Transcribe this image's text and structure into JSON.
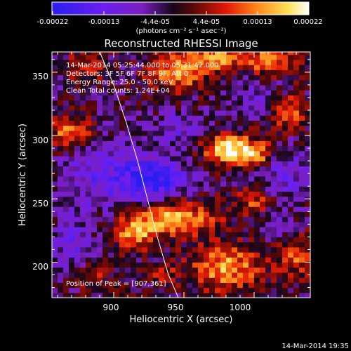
{
  "title": "Reconstructed RHESSI Image",
  "colorbar": {
    "tick_labels": [
      "-0.00022",
      "-0.00013",
      "-4.4e-05",
      "4.4e-05",
      "0.00013",
      "0.00022"
    ],
    "units": "(photons cm⁻² s⁻¹ asec⁻²)",
    "min": -0.00022,
    "max": 0.00022
  },
  "axes": {
    "xlabel": "Heliocentric X (arcsec)",
    "ylabel": "Heliocentric Y (arcsec)",
    "xlim": [
      856,
      1040
    ],
    "ylim": [
      172,
      366
    ],
    "xticks": [
      "900",
      "950",
      "1000"
    ],
    "yticks": [
      "200",
      "250",
      "300",
      "350"
    ]
  },
  "info": {
    "time_range": "14-Mar-2014 05:25:44.000 to 05:31:42.000",
    "detectors": "Detectors: 3F 5F 6F 7F 8F 9F, Att 0",
    "energy_range": "Energy Range: 25.0 - 50.0 keV",
    "method_counts": "Clean    Total counts: 1.24E+04"
  },
  "peak_text": "Position of Peak = [907,361]",
  "footer": "14-Mar-2014 19:35",
  "colors": {
    "background": "#000000",
    "text": "#ffffff",
    "limb": "#ffffff"
  },
  "chart_data": {
    "type": "heatmap",
    "title": "Reconstructed RHESSI Image",
    "xlabel": "Heliocentric X (arcsec)",
    "ylabel": "Heliocentric Y (arcsec)",
    "xlim": [
      856,
      1040
    ],
    "ylim": [
      172,
      366
    ],
    "value_range": [
      -0.00022,
      0.00022
    ],
    "colormap": "blue-purple-black-red-orange-yellow-white",
    "peak": [
      907,
      361
    ],
    "bright_regions": [
      {
        "x": 945,
        "y": 350,
        "sx": 14,
        "sy": 10,
        "value": 0.00016
      },
      {
        "x": 972,
        "y": 362,
        "sx": 15,
        "sy": 7,
        "value": 0.00015
      },
      {
        "x": 1012,
        "y": 360,
        "sx": 15,
        "sy": 8,
        "value": 0.00014
      },
      {
        "x": 870,
        "y": 302,
        "sx": 12,
        "sy": 10,
        "value": 0.00015
      },
      {
        "x": 880,
        "y": 355,
        "sx": 9,
        "sy": 8,
        "value": 0.0001
      },
      {
        "x": 982,
        "y": 290,
        "sx": 14,
        "sy": 8,
        "value": 0.00021
      },
      {
        "x": 1002,
        "y": 284,
        "sx": 10,
        "sy": 7,
        "value": 0.00013
      },
      {
        "x": 1025,
        "y": 318,
        "sx": 9,
        "sy": 10,
        "value": 0.00013
      },
      {
        "x": 940,
        "y": 235,
        "sx": 22,
        "sy": 10,
        "value": 0.00019
      },
      {
        "x": 915,
        "y": 222,
        "sx": 9,
        "sy": 8,
        "value": 0.00015
      },
      {
        "x": 1000,
        "y": 250,
        "sx": 10,
        "sy": 8,
        "value": 0.00011
      },
      {
        "x": 980,
        "y": 196,
        "sx": 18,
        "sy": 13,
        "value": 0.00016
      },
      {
        "x": 1030,
        "y": 205,
        "sx": 9,
        "sy": 12,
        "value": 0.00011
      },
      {
        "x": 935,
        "y": 190,
        "sx": 8,
        "sy": 7,
        "value": 7e-05
      },
      {
        "x": 885,
        "y": 190,
        "sx": 10,
        "sy": 7,
        "value": 7e-05
      }
    ],
    "dark_regions": [
      {
        "x": 928,
        "y": 265,
        "sx": 16,
        "sy": 13,
        "value": -0.00018
      },
      {
        "x": 890,
        "y": 270,
        "sx": 20,
        "sy": 22,
        "value": -0.0001
      },
      {
        "x": 1020,
        "y": 270,
        "sx": 13,
        "sy": 14,
        "value": -9e-05
      },
      {
        "x": 950,
        "y": 305,
        "sx": 14,
        "sy": 10,
        "value": -8e-05
      },
      {
        "x": 1000,
        "y": 330,
        "sx": 12,
        "sy": 10,
        "value": -7e-05
      },
      {
        "x": 870,
        "y": 215,
        "sx": 10,
        "sy": 13,
        "value": -9e-05
      },
      {
        "x": 1015,
        "y": 228,
        "sx": 10,
        "sy": 8,
        "value": -6e-05
      }
    ],
    "limb_curve": [
      [
        890,
        366
      ],
      [
        900,
        340
      ],
      [
        909,
        310
      ],
      [
        917,
        280
      ],
      [
        924,
        250
      ],
      [
        931,
        220
      ],
      [
        939,
        190
      ],
      [
        946,
        172
      ]
    ]
  }
}
